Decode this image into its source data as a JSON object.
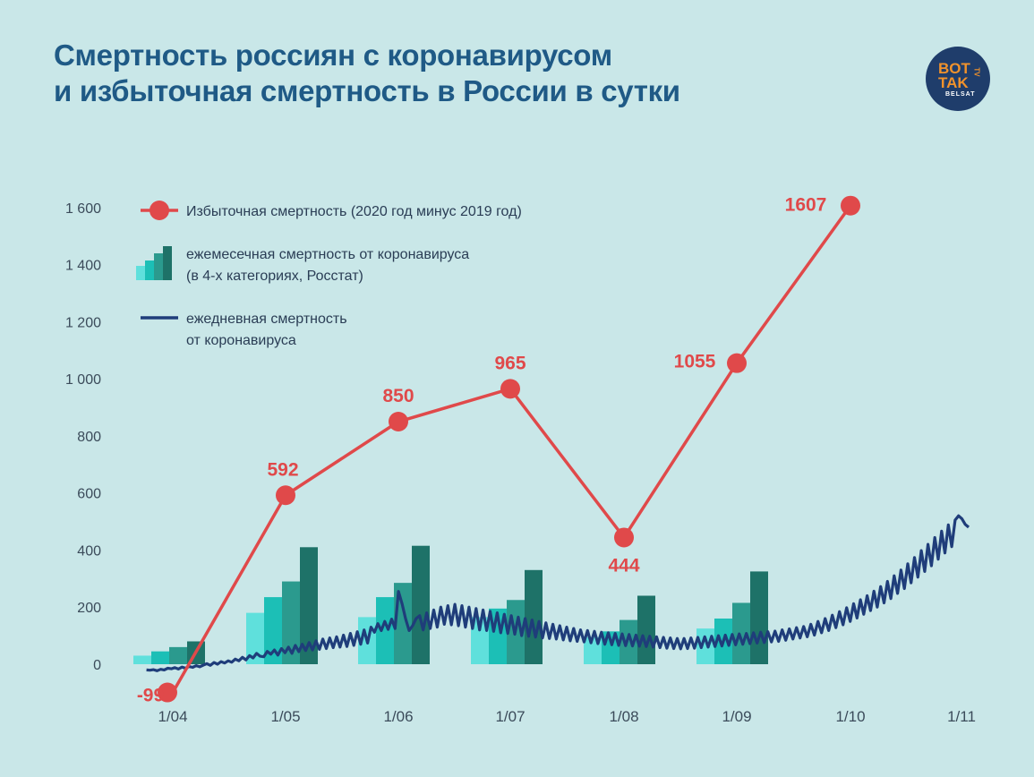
{
  "title": {
    "line1": "Смертность россиян с коронавирусом",
    "line2": "и избыточная смертность в России в сутки"
  },
  "logo": {
    "line1": "BOT",
    "line2": "TAK",
    "tv": "TV",
    "sub": "BELSAT"
  },
  "colors": {
    "excess": "#e0494a",
    "daily": "#1f3d7a",
    "monthly": [
      "#5fe0dc",
      "#1cbfb6",
      "#2b9a8e",
      "#1e7268"
    ],
    "background": "#c9e7e8"
  },
  "chart_data": {
    "type": "line",
    "ylim": [
      -100,
      1650
    ],
    "yticks": [
      0,
      200,
      400,
      600,
      800,
      1000,
      1200,
      1400,
      1600
    ],
    "ytick_labels": [
      "0",
      "200",
      "400",
      "600",
      "800",
      "1 000",
      "1 200",
      "1 400",
      "1 600"
    ],
    "xticks": [
      "1/04",
      "1/05",
      "1/06",
      "1/07",
      "1/08",
      "1/09",
      "1/10",
      "1/11"
    ],
    "legend": [
      {
        "text": "Избыточная смертность (2020 год минус 2019 год)",
        "lines": [
          "Избыточная смертность (2020 год минус 2019 год)"
        ]
      },
      {
        "text": "ежемесечная смертность от коронавируса (в 4-х категориях, Росстат)",
        "lines": [
          "ежемесечная смертность от коронавируса",
          "(в 4-х категориях, Росстат)"
        ]
      },
      {
        "text": "ежедневная смертность от коронавируса",
        "lines": [
          "ежедневная смертность",
          "от коронавируса"
        ]
      }
    ],
    "excess_mortality": {
      "name": "Избыточная смертность (2020 год минус 2019 год)",
      "x": [
        "1/04",
        "1/05",
        "1/06",
        "1/07",
        "1/08",
        "1/09",
        "1/10"
      ],
      "values": [
        -99,
        592,
        850,
        965,
        444,
        1055,
        1607
      ],
      "labels": [
        "-99",
        "592",
        "850",
        "965",
        "444",
        "1055",
        "1607"
      ]
    },
    "monthly_covid": {
      "name": "ежемесечная смертность от коронавируса (в 4-х категориях, Росстат)",
      "months": [
        "04",
        "05",
        "06",
        "07",
        "08",
        "09"
      ],
      "values": [
        [
          30,
          45,
          60,
          80
        ],
        [
          180,
          235,
          290,
          410
        ],
        [
          165,
          235,
          285,
          415
        ],
        [
          165,
          195,
          225,
          330
        ],
        [
          95,
          115,
          155,
          240
        ],
        [
          125,
          160,
          215,
          325
        ]
      ]
    },
    "daily_covid": {
      "name": "ежедневная смертность от коронавируса",
      "start": "2020-03-25",
      "values": [
        -20,
        -21,
        -19,
        -23,
        -18,
        -20,
        -14,
        -16,
        -12,
        -17,
        -10,
        -14,
        -8,
        -11,
        -5,
        -9,
        -3,
        2,
        -4,
        6,
        0,
        9,
        4,
        12,
        7,
        18,
        12,
        24,
        15,
        30,
        22,
        38,
        28,
        26,
        45,
        35,
        50,
        32,
        55,
        40,
        60,
        38,
        66,
        44,
        70,
        48,
        76,
        50,
        82,
        52,
        88,
        55,
        92,
        58,
        96,
        60,
        102,
        62,
        108,
        66,
        114,
        70,
        120,
        74,
        130,
        112,
        142,
        118,
        150,
        122,
        158,
        125,
        255,
        212,
        160,
        118,
        135,
        160,
        170,
        120,
        180,
        125,
        190,
        130,
        200,
        140,
        205,
        138,
        210,
        135,
        205,
        130,
        200,
        125,
        195,
        120,
        190,
        118,
        185,
        115,
        180,
        110,
        175,
        108,
        170,
        105,
        165,
        100,
        160,
        98,
        155,
        95,
        150,
        92,
        145,
        90,
        140,
        88,
        135,
        85,
        130,
        82,
        125,
        80,
        120,
        78,
        118,
        75,
        115,
        72,
        112,
        70,
        110,
        68,
        108,
        66,
        106,
        65,
        104,
        64,
        102,
        63,
        100,
        62,
        98,
        60,
        96,
        58,
        94,
        56,
        92,
        55,
        90,
        54,
        90,
        55,
        92,
        56,
        94,
        58,
        96,
        60,
        98,
        62,
        100,
        64,
        102,
        66,
        104,
        68,
        106,
        70,
        108,
        72,
        110,
        74,
        112,
        76,
        114,
        78,
        116,
        80,
        120,
        84,
        124,
        88,
        128,
        92,
        132,
        96,
        140,
        102,
        150,
        110,
        160,
        118,
        172,
        128,
        184,
        138,
        198,
        150,
        212,
        162,
        226,
        175,
        240,
        188,
        256,
        200,
        272,
        215,
        290,
        230,
        310,
        248,
        330,
        265,
        352,
        285,
        374,
        305,
        398,
        325,
        420,
        345,
        444,
        368,
        466,
        390,
        488,
        412,
        505,
        520,
        510,
        490,
        480
      ]
    }
  }
}
